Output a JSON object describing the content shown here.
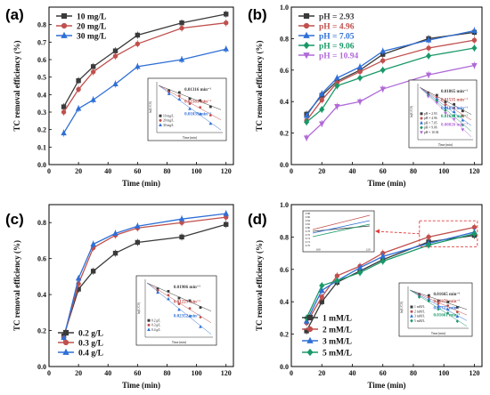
{
  "colors": {
    "black": "#3a3a3a",
    "red": "#c0504d",
    "blue": "#2f6fd6",
    "ph_green": "#199968",
    "ph_purple": "#b06ad8",
    "dash_box": "#e23a3a"
  },
  "chart_data": [
    {
      "panel": "(a)",
      "type": "line",
      "xlabel": "Time (min)",
      "ylabel": "TC removal efficiency (%)",
      "xlim": [
        0,
        125
      ],
      "ylim": [
        0,
        0.9
      ],
      "xticks": [
        0,
        20,
        40,
        60,
        80,
        100,
        120
      ],
      "yticks": [
        0.0,
        0.1,
        0.2,
        0.3,
        0.4,
        0.5,
        0.6,
        0.7,
        0.8
      ],
      "legend_position": "top-left",
      "x": [
        10,
        20,
        30,
        45,
        60,
        90,
        120
      ],
      "series": [
        {
          "name": "10 mg/L",
          "color": "#3a3a3a",
          "marker": "square",
          "values": [
            0.33,
            0.48,
            0.56,
            0.65,
            0.74,
            0.81,
            0.86
          ]
        },
        {
          "name": "20 mg/L",
          "color": "#c0504d",
          "marker": "circle",
          "values": [
            0.3,
            0.43,
            0.53,
            0.62,
            0.69,
            0.78,
            0.81
          ]
        },
        {
          "name": "30 mg/L",
          "color": "#2f6fd6",
          "marker": "triangle",
          "values": [
            0.18,
            0.32,
            0.37,
            0.46,
            0.56,
            0.6,
            0.66
          ]
        }
      ],
      "inset": {
        "position": "bottom-right",
        "xlabel": "Time (min)",
        "ylabel": "ln(C/C0)",
        "legend": [
          "10 mg/L",
          "20 mg/L",
          "30 mg/L"
        ],
        "annotations": [
          "0.01316 min⁻¹",
          "0.02161 min⁻¹",
          "0.01039 min⁻¹"
        ]
      }
    },
    {
      "panel": "(b)",
      "type": "line",
      "xlabel": "Time (min)",
      "ylabel": "TC removal efficiency (%)",
      "xlim": [
        0,
        125
      ],
      "ylim": [
        0,
        1.0
      ],
      "xticks": [
        0,
        20,
        40,
        60,
        80,
        100,
        120
      ],
      "yticks": [
        0.0,
        0.2,
        0.4,
        0.6,
        0.8,
        1.0
      ],
      "legend_position": "top-left",
      "x": [
        10,
        20,
        30,
        45,
        60,
        90,
        120
      ],
      "series": [
        {
          "name": "pH = 2.93",
          "color": "#3a3a3a",
          "marker": "square",
          "values": [
            0.32,
            0.44,
            0.53,
            0.6,
            0.7,
            0.8,
            0.84
          ]
        },
        {
          "name": "pH = 4.96",
          "color": "#c0504d",
          "marker": "circle",
          "values": [
            0.28,
            0.41,
            0.52,
            0.59,
            0.66,
            0.74,
            0.79
          ]
        },
        {
          "name": "pH = 7.05",
          "color": "#2f6fd6",
          "marker": "triangle",
          "values": [
            0.31,
            0.45,
            0.55,
            0.62,
            0.72,
            0.79,
            0.85
          ]
        },
        {
          "name": "pH = 9.06",
          "color": "#199968",
          "marker": "diamond",
          "values": [
            0.27,
            0.35,
            0.5,
            0.55,
            0.6,
            0.69,
            0.74
          ]
        },
        {
          "name": "pH = 10.94",
          "color": "#b06ad8",
          "marker": "triangle-down",
          "values": [
            0.17,
            0.26,
            0.37,
            0.4,
            0.48,
            0.57,
            0.63
          ]
        }
      ],
      "inset": {
        "position": "bottom-right",
        "xlabel": "Time (min)",
        "ylabel": "ln(C/C0)",
        "legend": [
          "pH = 2.93",
          "pH = 4.96",
          "pH = 7.05",
          "pH = 9.06",
          "pH = 10.94"
        ],
        "annotations": [
          "0.01865 min⁻¹",
          "0.01535 min⁻¹",
          "0.01832 min⁻¹",
          "0.01612 min⁻¹",
          "0.00826 min⁻¹"
        ]
      }
    },
    {
      "panel": "(c)",
      "type": "line",
      "xlabel": "Time (min)",
      "ylabel": "TC removal efficiency (%)",
      "xlim": [
        0,
        125
      ],
      "ylim": [
        0,
        0.9
      ],
      "xticks": [
        0,
        20,
        40,
        60,
        80,
        100,
        120
      ],
      "yticks": [
        0.0,
        0.2,
        0.4,
        0.6,
        0.8
      ],
      "legend_position": "bottom-left",
      "x": [
        10,
        20,
        30,
        45,
        60,
        90,
        120
      ],
      "series": [
        {
          "name": "0.2 g/L",
          "color": "#3a3a3a",
          "marker": "square",
          "values": [
            0.17,
            0.43,
            0.53,
            0.63,
            0.69,
            0.72,
            0.79
          ]
        },
        {
          "name": "0.3 g/L",
          "color": "#c0504d",
          "marker": "circle",
          "values": [
            0.16,
            0.46,
            0.66,
            0.73,
            0.77,
            0.8,
            0.83
          ]
        },
        {
          "name": "0.4 g/L",
          "color": "#2f6fd6",
          "marker": "triangle",
          "values": [
            0.16,
            0.49,
            0.68,
            0.74,
            0.78,
            0.82,
            0.85
          ]
        }
      ],
      "inset": {
        "position": "right",
        "xlabel": "Time (min)",
        "ylabel": "ln(C/C0)",
        "legend": [
          "0.2 g/L",
          "0.3 g/L",
          "0.4 g/L"
        ],
        "annotations": [
          "0.01906 min⁻¹",
          "0.01229 min⁻¹",
          "0.02352 min⁻¹"
        ]
      }
    },
    {
      "panel": "(d)",
      "type": "line",
      "xlabel": "Time (min)",
      "ylabel": "TC removal efficiency (%)",
      "xlim": [
        0,
        125
      ],
      "ylim": [
        0,
        1.0
      ],
      "xticks": [
        0,
        20,
        40,
        60,
        80,
        100,
        120
      ],
      "yticks": [
        0.0,
        0.2,
        0.4,
        0.6,
        0.8,
        1.0
      ],
      "legend_position": "bottom-right",
      "x": [
        10,
        20,
        30,
        45,
        60,
        90,
        120
      ],
      "series": [
        {
          "name": "1 mM/L",
          "color": "#3a3a3a",
          "marker": "square",
          "values": [
            0.22,
            0.4,
            0.52,
            0.59,
            0.66,
            0.77,
            0.81
          ]
        },
        {
          "name": "2 mM/L",
          "color": "#c0504d",
          "marker": "circle",
          "values": [
            0.27,
            0.43,
            0.56,
            0.62,
            0.7,
            0.8,
            0.86
          ]
        },
        {
          "name": "3 mM/L",
          "color": "#2f6fd6",
          "marker": "triangle",
          "values": [
            0.28,
            0.47,
            0.53,
            0.61,
            0.68,
            0.76,
            0.83
          ]
        },
        {
          "name": "5 mM/L",
          "color": "#199968",
          "marker": "diamond",
          "values": [
            0.3,
            0.5,
            0.53,
            0.58,
            0.65,
            0.75,
            0.82
          ]
        }
      ],
      "zoom_inset": {
        "position": "top-left",
        "xticks": [
          "100",
          "120"
        ],
        "yticks": [
          "0.70",
          "0.72",
          "0.74",
          "0.76",
          "0.78",
          "0.80",
          "0.82",
          "0.84",
          "0.86",
          "0.88"
        ]
      },
      "inset": {
        "position": "bottom-right",
        "xlabel": "Time (min)",
        "ylabel": "ln(C/C0)",
        "legend": [
          "1 mM/L",
          "2 mM/L",
          "3 mM/L",
          "5 mM/L"
        ],
        "annotations": [
          "0.01665 min⁻¹",
          "0.01379 min⁻¹",
          "0.01727 min⁻¹",
          "0.01661 min⁻¹"
        ]
      }
    }
  ]
}
